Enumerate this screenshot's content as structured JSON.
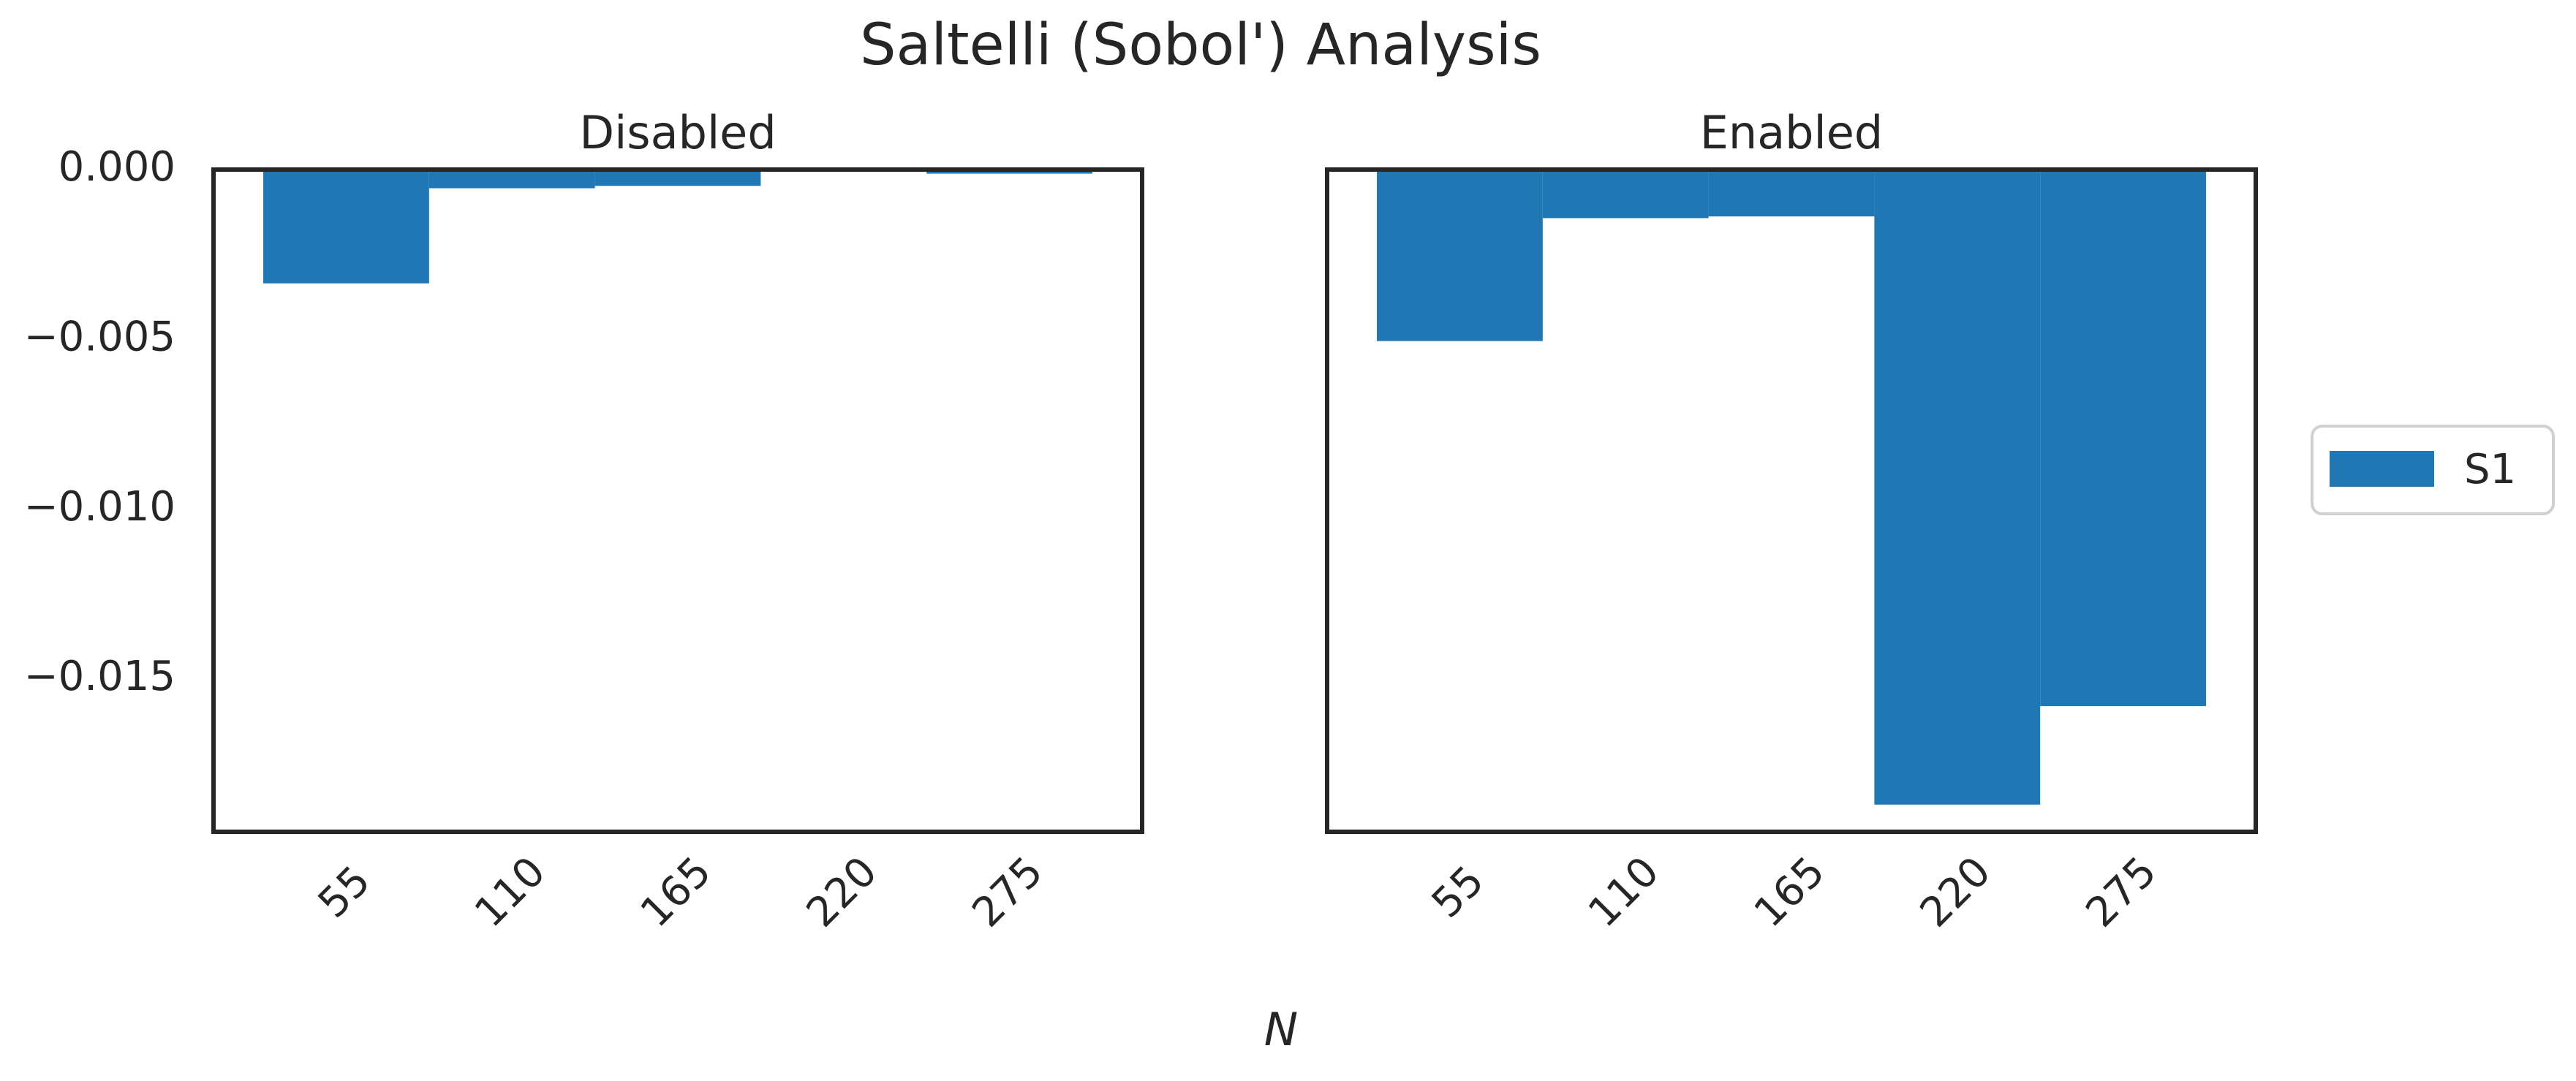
{
  "chart_data": {
    "type": "bar",
    "title": "Saltelli (Sobol') Analysis",
    "xlabel": "N",
    "ylabel": "",
    "categories": [
      "55",
      "110",
      "165",
      "220",
      "275"
    ],
    "ylim": [
      -0.0195,
      0.0
    ],
    "yticks": [
      0.0,
      -0.005,
      -0.01,
      -0.015
    ],
    "ytick_labels": [
      "0.000",
      "−0.005",
      "−0.010",
      "−0.015"
    ],
    "legend": {
      "placement": "center-right",
      "entries": [
        "S1"
      ]
    },
    "bar_color": "#1f77b4",
    "panels": [
      {
        "title": "Disabled",
        "series": [
          {
            "name": "S1",
            "values": [
              -0.00335,
              -0.00055,
              -0.00048,
              -3e-05,
              -0.00012
            ]
          }
        ]
      },
      {
        "title": "Enabled",
        "series": [
          {
            "name": "S1",
            "values": [
              -0.00505,
              -0.00143,
              -0.00138,
              -0.0187,
              -0.0158
            ]
          }
        ]
      }
    ]
  }
}
